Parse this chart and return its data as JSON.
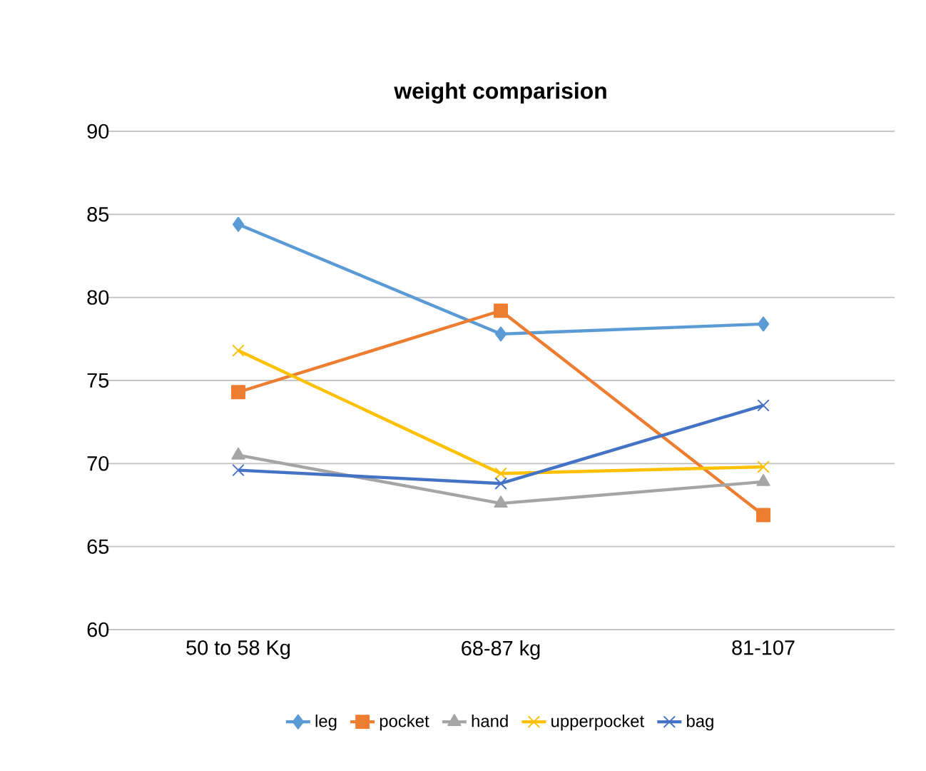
{
  "chart_data": {
    "type": "line",
    "title": "weight comparision",
    "categories": [
      "50 to 58 Kg",
      "68-87 kg",
      "81-107"
    ],
    "series": [
      {
        "name": "leg",
        "color": "#5b9bd5",
        "marker": "diamond",
        "values": [
          84.4,
          77.8,
          78.4
        ]
      },
      {
        "name": "pocket",
        "color": "#ed7d31",
        "marker": "square",
        "values": [
          74.3,
          79.2,
          66.9
        ]
      },
      {
        "name": "hand",
        "color": "#a5a5a5",
        "marker": "triangle",
        "values": [
          70.5,
          67.6,
          68.9
        ]
      },
      {
        "name": "upperpocket",
        "color": "#ffc000",
        "marker": "cross",
        "values": [
          76.8,
          69.4,
          69.8
        ]
      },
      {
        "name": "bag",
        "color": "#4472c4",
        "marker": "cross",
        "values": [
          69.6,
          68.8,
          73.5
        ]
      }
    ],
    "ylim": [
      60,
      90
    ],
    "yticks": [
      60,
      65,
      70,
      75,
      80,
      85,
      90
    ],
    "grid": "y",
    "legend": "bottom",
    "line_style": "solid"
  }
}
